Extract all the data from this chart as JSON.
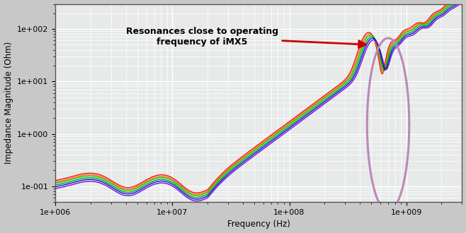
{
  "xlabel": "Frequency (Hz)",
  "ylabel": "Impedance Magnitude (Ohm)",
  "xlim": [
    1000000.0,
    3000000000.0
  ],
  "ylim": [
    0.05,
    300
  ],
  "annotation_text": "Resonances close to operating\nfrequency of iMX5",
  "line_colors": [
    "#ff0000",
    "#ff6600",
    "#00cc00",
    "#00aa00",
    "#0000ff",
    "#7700cc"
  ],
  "background_color": "#e8eaea",
  "grid_color": "#ffffff",
  "ellipse_color": "#bb88bb",
  "arrow_color": "#cc0000",
  "fig_width": 6.58,
  "fig_height": 3.3
}
